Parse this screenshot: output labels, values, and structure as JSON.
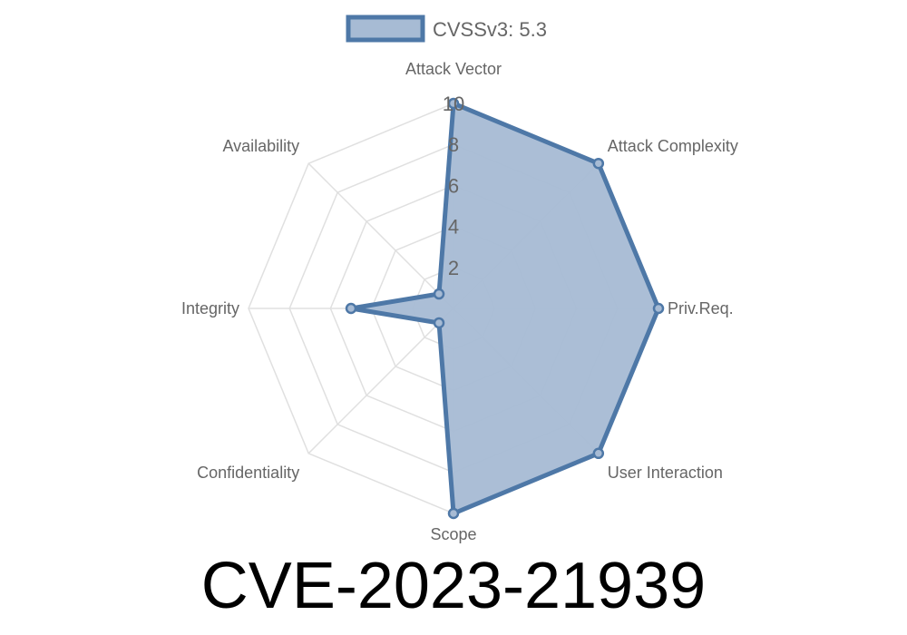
{
  "chart_data": {
    "type": "radar",
    "axes": [
      "Attack Vector",
      "Attack Complexity",
      "Priv.Req.",
      "User Interaction",
      "Scope",
      "Confidentiality",
      "Integrity",
      "Availability"
    ],
    "series": [
      {
        "name": "CVSSv3: 5.3",
        "values": [
          10,
          10,
          10,
          10,
          10,
          1,
          5,
          1
        ]
      }
    ],
    "rlim": [
      0,
      10
    ],
    "ticks": [
      "2",
      "4",
      "6",
      "8",
      "10"
    ],
    "tick_values": [
      2,
      4,
      6,
      8,
      10
    ],
    "legend_position": "top",
    "grid": true,
    "colors": {
      "line": "#4e78a7",
      "fill": "#a7bbd4",
      "grid": "#e0e0e0"
    }
  },
  "title": "CVE-2023-21939"
}
